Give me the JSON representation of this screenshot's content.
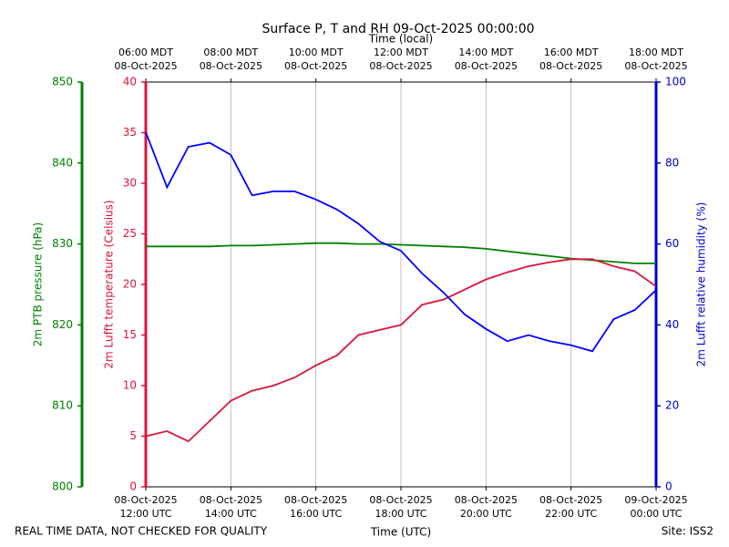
{
  "chart_data": {
    "type": "line",
    "title": "Surface P, T and RH 09-Oct-2025 00:00:00",
    "xlabel": "Time (UTC)",
    "x2label": "Time (local)",
    "footer_left": "REAL TIME DATA, NOT CHECKED FOR QUALITY",
    "footer_right": "Site: ISS2",
    "grid": true,
    "x": [
      "2025-10-08T12:00",
      "2025-10-08T12:30",
      "2025-10-08T13:00",
      "2025-10-08T13:30",
      "2025-10-08T14:00",
      "2025-10-08T14:30",
      "2025-10-08T15:00",
      "2025-10-08T15:30",
      "2025-10-08T16:00",
      "2025-10-08T16:30",
      "2025-10-08T17:00",
      "2025-10-08T17:30",
      "2025-10-08T18:00",
      "2025-10-08T18:30",
      "2025-10-08T19:00",
      "2025-10-08T19:30",
      "2025-10-08T20:00",
      "2025-10-08T20:30",
      "2025-10-08T21:00",
      "2025-10-08T21:30",
      "2025-10-08T22:00",
      "2025-10-08T22:30",
      "2025-10-08T23:00",
      "2025-10-08T23:30",
      "2025-10-09T00:00"
    ],
    "xlim": [
      "2025-10-08T12:00",
      "2025-10-09T00:00"
    ],
    "xticks": [
      {
        "value": "2025-10-08T12:00",
        "label": [
          "08-Oct-2025",
          "12:00 UTC"
        ]
      },
      {
        "value": "2025-10-08T14:00",
        "label": [
          "08-Oct-2025",
          "14:00 UTC"
        ]
      },
      {
        "value": "2025-10-08T16:00",
        "label": [
          "08-Oct-2025",
          "16:00 UTC"
        ]
      },
      {
        "value": "2025-10-08T18:00",
        "label": [
          "08-Oct-2025",
          "18:00 UTC"
        ]
      },
      {
        "value": "2025-10-08T20:00",
        "label": [
          "08-Oct-2025",
          "20:00 UTC"
        ]
      },
      {
        "value": "2025-10-08T22:00",
        "label": [
          "08-Oct-2025",
          "22:00 UTC"
        ]
      },
      {
        "value": "2025-10-09T00:00",
        "label": [
          "09-Oct-2025",
          "00:00 UTC"
        ]
      }
    ],
    "x2ticks": [
      {
        "value": "2025-10-08T12:00",
        "label": [
          "06:00 MDT",
          "08-Oct-2025"
        ]
      },
      {
        "value": "2025-10-08T14:00",
        "label": [
          "08:00 MDT",
          "08-Oct-2025"
        ]
      },
      {
        "value": "2025-10-08T16:00",
        "label": [
          "10:00 MDT",
          "08-Oct-2025"
        ]
      },
      {
        "value": "2025-10-08T18:00",
        "label": [
          "12:00 MDT",
          "08-Oct-2025"
        ]
      },
      {
        "value": "2025-10-08T20:00",
        "label": [
          "14:00 MDT",
          "08-Oct-2025"
        ]
      },
      {
        "value": "2025-10-08T22:00",
        "label": [
          "16:00 MDT",
          "08-Oct-2025"
        ]
      },
      {
        "value": "2025-10-09T00:00",
        "label": [
          "18:00 MDT",
          "08-Oct-2025"
        ]
      }
    ],
    "ylabel": "2m Lufft temperature (Celsius)",
    "ylim": [
      0,
      40
    ],
    "yticks": [
      0,
      5,
      10,
      15,
      20,
      25,
      30,
      35,
      40
    ],
    "ycolor": "#dc143c",
    "y2label": "2m Lufft relative humidity (%)",
    "y2lim": [
      0,
      100
    ],
    "y2ticks": [
      0,
      20,
      40,
      60,
      80,
      100
    ],
    "y2color": "#0000cd",
    "y3label": "2m PTB pressure (hPa)",
    "y3lim": [
      800,
      850
    ],
    "y3ticks": [
      800,
      810,
      820,
      830,
      840,
      850
    ],
    "y3color": "#008000",
    "series": [
      {
        "axis": "y3",
        "color": "#008000",
        "values": [
          829.7,
          829.7,
          829.7,
          829.7,
          829.8,
          829.8,
          829.9,
          830.0,
          830.1,
          830.1,
          830.0,
          830.0,
          829.9,
          829.8,
          829.7,
          829.6,
          829.4,
          829.1,
          828.8,
          828.5,
          828.2,
          828.0,
          827.8,
          827.6,
          827.6
        ]
      },
      {
        "axis": "y",
        "color": "#dc143c",
        "values": [
          5.0,
          5.5,
          4.5,
          6.5,
          8.5,
          9.5,
          10.0,
          10.8,
          12.0,
          13.0,
          15.0,
          15.5,
          16.0,
          18.0,
          18.5,
          19.5,
          20.5,
          21.2,
          21.8,
          22.2,
          22.5,
          22.5,
          21.8,
          21.3,
          19.8
        ]
      },
      {
        "axis": "y2",
        "color": "#0000ff",
        "values": [
          87.6,
          74.0,
          84.0,
          85.0,
          82.0,
          72.0,
          73.0,
          73.0,
          71.0,
          68.5,
          65.0,
          60.6,
          58.3,
          52.7,
          48.0,
          42.6,
          39.0,
          36.0,
          37.5,
          36.0,
          35.0,
          33.5,
          41.4,
          43.7,
          48.6
        ]
      }
    ]
  }
}
